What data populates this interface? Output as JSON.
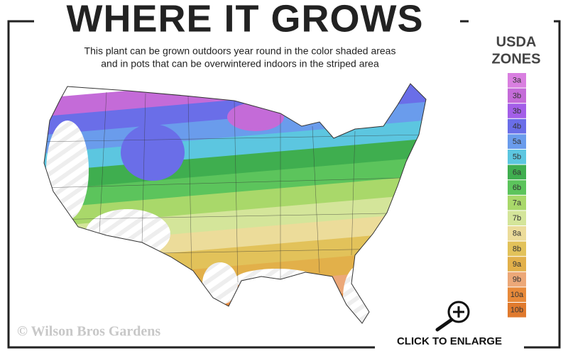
{
  "header": {
    "title": "WHERE IT GROWS",
    "subtitle_lines": [
      "This plant can be grown outdoors year round in the color shaded areas",
      "and in pots that can be overwintered indoors in the striped area"
    ]
  },
  "legend": {
    "title_lines": [
      "USDA",
      "ZONES"
    ],
    "zones": [
      {
        "label": "3a",
        "color": "#d97fe0"
      },
      {
        "label": "3b",
        "color": "#c46bd8"
      },
      {
        "label": "3b",
        "color": "#a35ee8"
      },
      {
        "label": "4b",
        "color": "#6a6ee8"
      },
      {
        "label": "5a",
        "color": "#6a9cec"
      },
      {
        "label": "5b",
        "color": "#5cc6e0"
      },
      {
        "label": "6a",
        "color": "#3fae4f"
      },
      {
        "label": "6b",
        "color": "#5cc45c"
      },
      {
        "label": "7a",
        "color": "#a9d86a"
      },
      {
        "label": "7b",
        "color": "#d4e59a"
      },
      {
        "label": "8a",
        "color": "#ecdc9a"
      },
      {
        "label": "8b",
        "color": "#e2c25a"
      },
      {
        "label": "9a",
        "color": "#e2b04a"
      },
      {
        "label": "9b",
        "color": "#eca878"
      },
      {
        "label": "10a",
        "color": "#e88a3a"
      },
      {
        "label": "10b",
        "color": "#e07a2e"
      }
    ]
  },
  "footer": {
    "copyright": "© Wilson Bros Gardens",
    "action": "CLICK TO ENLARGE"
  }
}
